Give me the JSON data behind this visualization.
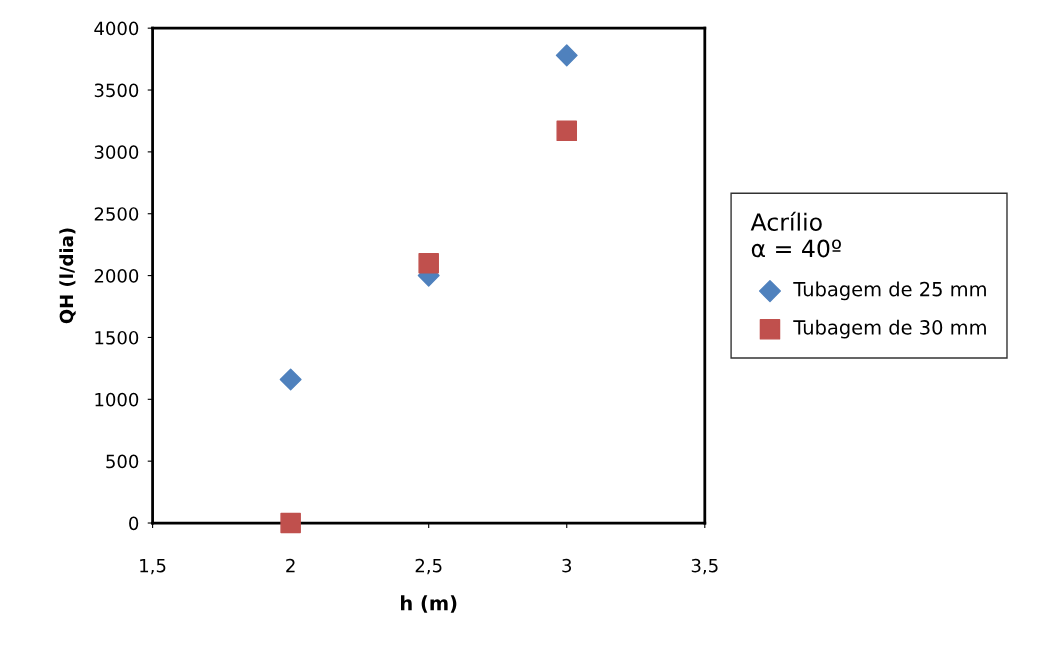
{
  "chart_data": {
    "type": "scatter",
    "xlabel": "h (m)",
    "ylabel": "QH (l/dia)",
    "legend_title": "Acrílio\nα = 40º",
    "x": [
      2,
      2.5,
      3
    ],
    "series": [
      {
        "name": "Tubagem de 25 mm",
        "color": "#4f81bd",
        "values": [
          1160,
          2000,
          3780
        ],
        "marker": "diamond"
      },
      {
        "name": "Tubagem de 30 mm",
        "color": "#c0504d",
        "values": [
          0,
          2100,
          3170
        ],
        "marker": "square"
      }
    ],
    "xlim": [
      1.5,
      3.5
    ],
    "xticks": [
      {
        "value": 1.5,
        "label": "1,5"
      },
      2,
      {
        "value": 2.5,
        "label": "2,5"
      },
      3,
      {
        "value": 3.5,
        "label": "3,5"
      }
    ],
    "ylim": [
      0,
      4000
    ],
    "yticks": [
      0,
      500,
      1000,
      1500,
      2000,
      2500,
      3000,
      3500,
      4000
    ],
    "grid": false,
    "legend": "right"
  }
}
